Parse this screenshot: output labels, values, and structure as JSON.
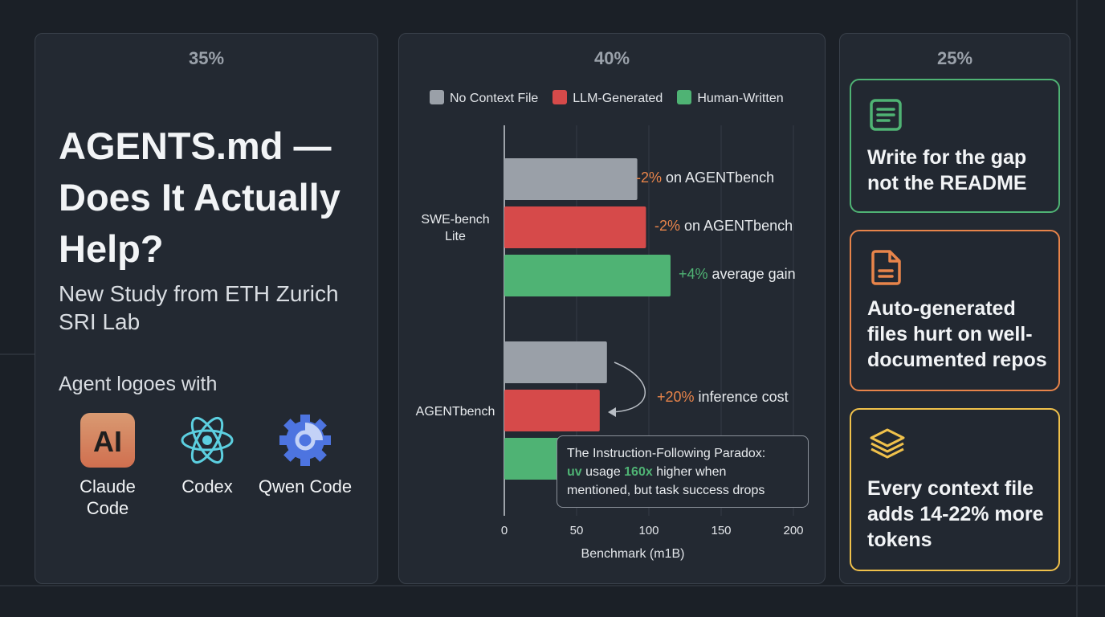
{
  "colors": {
    "background": "#1b2027",
    "panel": "#232932",
    "gray": "#9aa0a8",
    "red": "#d64a4a",
    "green": "#4fb374",
    "orange": "#e8844a",
    "yellow": "#f0c14b"
  },
  "left": {
    "percent": "35%",
    "title": "AGENTS.md — Does It Actually Help?",
    "subtitle": "New Study from ETH Zurich SRI Lab",
    "logos_heading": "Agent logoes with",
    "logos": [
      {
        "label": "Claude Code",
        "icon": "anthropic-ai-icon"
      },
      {
        "label": "Codex",
        "icon": "atom-icon"
      },
      {
        "label": "Qwen Code",
        "icon": "gear-icon"
      }
    ]
  },
  "middle": {
    "percent": "40%"
  },
  "chart_data": {
    "type": "bar",
    "orientation": "horizontal",
    "categories": [
      "SWE-bench Lite",
      "AGENTbench"
    ],
    "series": [
      {
        "name": "No Context File",
        "color": "#9aa0a8",
        "values": [
          92,
          71
        ]
      },
      {
        "name": "LLM-Generated",
        "color": "#d64a4a",
        "values": [
          98,
          66
        ]
      },
      {
        "name": "Human-Written",
        "color": "#4fb374",
        "values": [
          115,
          null
        ]
      }
    ],
    "xlabel": "Benchmark (m1B)",
    "xlim": [
      0,
      200
    ],
    "xticks": [
      "0",
      "50",
      "100",
      "150",
      "200"
    ],
    "grid": true,
    "legend": "top",
    "annotations": [
      {
        "highlight": "-2%",
        "text": " on AGENTbench",
        "color": "#e8844a"
      },
      {
        "highlight": "-2%",
        "text": " on AGENTbench",
        "color": "#e8844a"
      },
      {
        "highlight": "+4%",
        "text": " average gain",
        "color": "#4fb374"
      },
      {
        "highlight": "+20%",
        "text": " inference cost",
        "color": "#e8844a"
      }
    ],
    "callout": {
      "line1": "The Instruction-Following Paradox:",
      "uv": "uv",
      "mid": " usage ",
      "times": "160x",
      "rest": " higher when",
      "line3": "mentioned, but task success drops"
    }
  },
  "right": {
    "percent": "25%",
    "cards": [
      {
        "text": "Write for the gap not the README",
        "icon": "document-lines-icon",
        "color": "#4fb374"
      },
      {
        "text": "Auto-generated files hurt on well-documented repos",
        "icon": "file-icon",
        "color": "#e8844a"
      },
      {
        "text": "Every context file adds 14-22% more tokens",
        "icon": "layers-icon",
        "color": "#f0c14b"
      }
    ]
  }
}
